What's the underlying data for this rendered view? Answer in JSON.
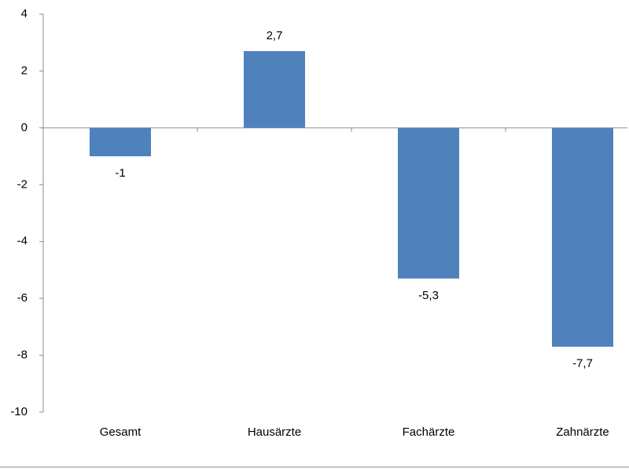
{
  "chart_data": {
    "type": "bar",
    "categories": [
      "Gesamt",
      "Hausärzte",
      "Fachärzte",
      "Zahnärzte"
    ],
    "values": [
      -1,
      2.7,
      -5.3,
      -7.7
    ],
    "value_labels": [
      "-1",
      "2,7",
      "-5,3",
      "-7,7"
    ],
    "color": "#4f81bd",
    "ylim": [
      -10,
      4
    ],
    "yticks": [
      -10,
      -8,
      -6,
      -4,
      -2,
      0,
      2,
      4
    ],
    "grid": false
  }
}
